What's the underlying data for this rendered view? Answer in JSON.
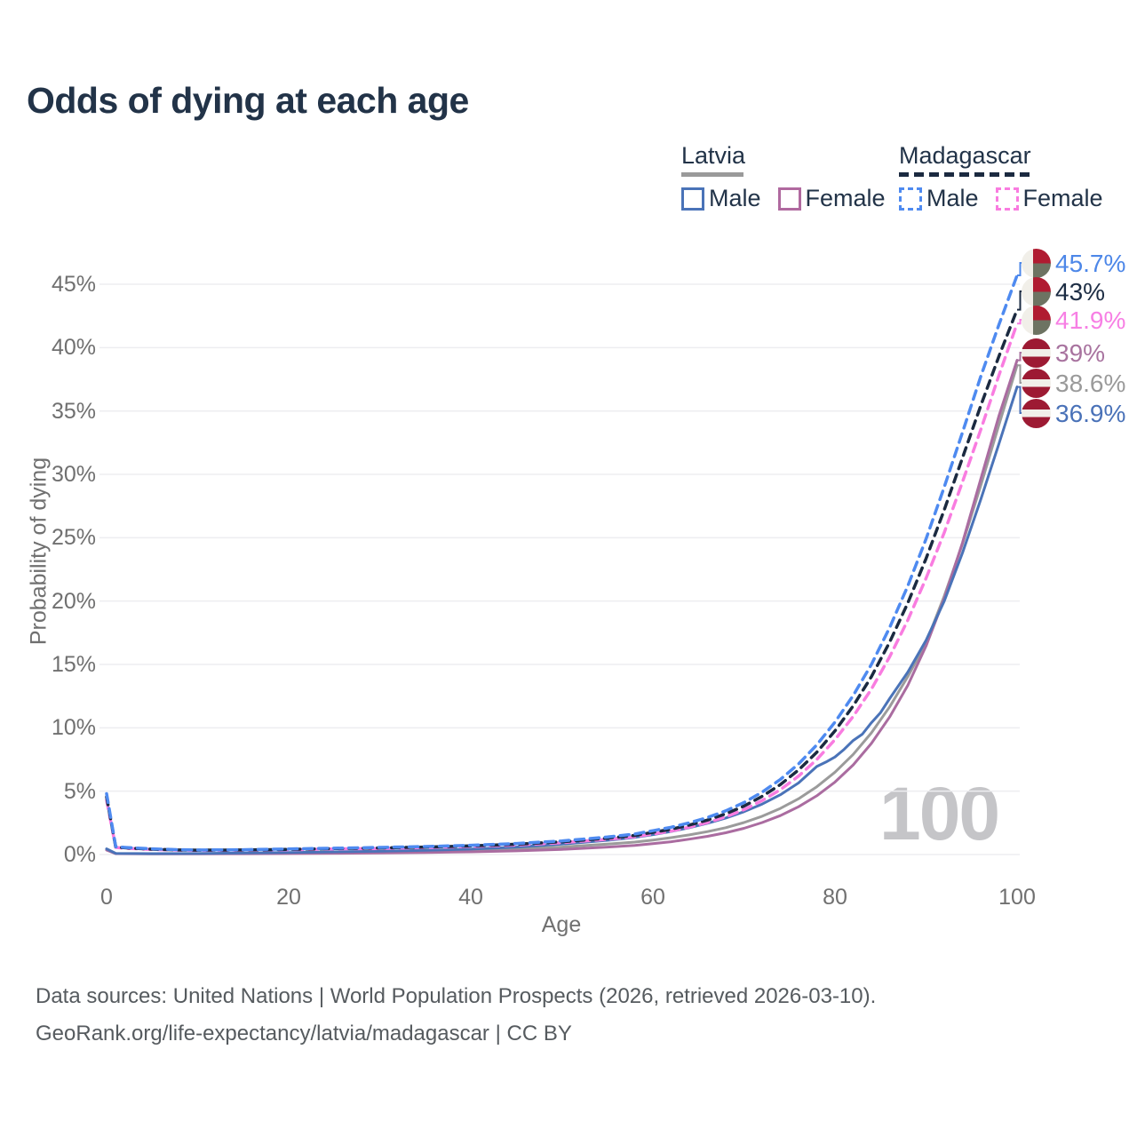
{
  "header": {
    "title": "Odds of dying at each age"
  },
  "legend": {
    "latvia": {
      "name": "Latvia",
      "male_label": "Male",
      "female_label": "Female"
    },
    "madagascar": {
      "name": "Madagascar",
      "male_label": "Male",
      "female_label": "Female"
    }
  },
  "axes": {
    "x_label": "Age",
    "y_label": "Probability of dying",
    "x_ticks": [
      {
        "label": "0",
        "value": 0
      },
      {
        "label": "20",
        "value": 20
      },
      {
        "label": "40",
        "value": 40
      },
      {
        "label": "60",
        "value": 60
      },
      {
        "label": "80",
        "value": 80
      },
      {
        "label": "100",
        "value": 100
      }
    ],
    "y_ticks": [
      {
        "label": "0%",
        "value": 0
      },
      {
        "label": "5%",
        "value": 5
      },
      {
        "label": "10%",
        "value": 10
      },
      {
        "label": "15%",
        "value": 15
      },
      {
        "label": "20%",
        "value": 20
      },
      {
        "label": "25%",
        "value": 25
      },
      {
        "label": "30%",
        "value": 30
      },
      {
        "label": "35%",
        "value": 35
      },
      {
        "label": "40%",
        "value": 40
      },
      {
        "label": "45%",
        "value": 45
      }
    ]
  },
  "watermark": "100",
  "footer": {
    "line1": "Data sources: United Nations | World Population Prospects (2026, retrieved 2026-03-10).",
    "line2": "GeoRank.org/life-expectancy/latvia/madagascar | CC BY"
  },
  "colors": {
    "title_text": "#223348",
    "latvia_male": "#4a73b8",
    "latvia_female": "#aa6ca0",
    "latvia_average": "#9b9b9b",
    "madagascar_male": "#4e8af0",
    "madagascar_female": "#f97ce0",
    "madagascar_average": "#1b2a40",
    "grid": "#ededf0",
    "tick_text": "#707070"
  },
  "chart_data": {
    "type": "line",
    "title": "Odds of dying at each age",
    "xlabel": "Age",
    "ylabel": "Probability of dying",
    "xlim": [
      0,
      100
    ],
    "ylim": [
      0,
      47
    ],
    "grid": "horizontal",
    "legend_position": "top-right",
    "series": [
      {
        "id": "latvia-avg",
        "country": "Latvia",
        "group": "average",
        "color": "#9b9b9b",
        "dash": null,
        "width": 3,
        "points": [
          [
            0,
            0.4
          ],
          [
            1,
            0.08
          ],
          [
            5,
            0.06
          ],
          [
            10,
            0.07
          ],
          [
            15,
            0.09
          ],
          [
            20,
            0.12
          ],
          [
            25,
            0.15
          ],
          [
            30,
            0.19
          ],
          [
            35,
            0.24
          ],
          [
            40,
            0.31
          ],
          [
            45,
            0.43
          ],
          [
            50,
            0.59
          ],
          [
            55,
            0.82
          ],
          [
            58,
            0.98
          ],
          [
            60,
            1.14
          ],
          [
            62,
            1.33
          ],
          [
            64,
            1.55
          ],
          [
            66,
            1.81
          ],
          [
            68,
            2.12
          ],
          [
            70,
            2.52
          ],
          [
            72,
            3.02
          ],
          [
            74,
            3.64
          ],
          [
            76,
            4.4
          ],
          [
            78,
            5.35
          ],
          [
            80,
            6.5
          ],
          [
            82,
            7.9
          ],
          [
            84,
            9.6
          ],
          [
            86,
            11.65
          ],
          [
            88,
            14.05
          ],
          [
            90,
            16.7
          ],
          [
            92,
            20.4
          ],
          [
            94,
            24.5
          ],
          [
            96,
            29.1
          ],
          [
            98,
            33.9
          ],
          [
            100,
            38.6
          ]
        ]
      },
      {
        "id": "latvia-female",
        "country": "Latvia",
        "group": "female",
        "color": "#aa6ca0",
        "dash": null,
        "width": 3,
        "points": [
          [
            0,
            0.35
          ],
          [
            1,
            0.07
          ],
          [
            5,
            0.05
          ],
          [
            10,
            0.05
          ],
          [
            15,
            0.06
          ],
          [
            20,
            0.08
          ],
          [
            25,
            0.1
          ],
          [
            30,
            0.12
          ],
          [
            35,
            0.16
          ],
          [
            40,
            0.21
          ],
          [
            45,
            0.29
          ],
          [
            50,
            0.41
          ],
          [
            55,
            0.59
          ],
          [
            58,
            0.72
          ],
          [
            60,
            0.86
          ],
          [
            62,
            1.01
          ],
          [
            64,
            1.21
          ],
          [
            66,
            1.44
          ],
          [
            68,
            1.72
          ],
          [
            70,
            2.07
          ],
          [
            72,
            2.52
          ],
          [
            74,
            3.07
          ],
          [
            76,
            3.77
          ],
          [
            78,
            4.63
          ],
          [
            80,
            5.72
          ],
          [
            82,
            7.07
          ],
          [
            84,
            8.77
          ],
          [
            86,
            10.85
          ],
          [
            88,
            13.35
          ],
          [
            90,
            16.45
          ],
          [
            92,
            20.2
          ],
          [
            94,
            24.6
          ],
          [
            96,
            29.6
          ],
          [
            98,
            34.6
          ],
          [
            100,
            39.0
          ]
        ]
      },
      {
        "id": "latvia-male",
        "country": "Latvia",
        "group": "male",
        "color": "#4a73b8",
        "dash": null,
        "width": 3,
        "points": [
          [
            0,
            0.45
          ],
          [
            1,
            0.09
          ],
          [
            5,
            0.07
          ],
          [
            10,
            0.08
          ],
          [
            15,
            0.12
          ],
          [
            20,
            0.16
          ],
          [
            25,
            0.21
          ],
          [
            30,
            0.26
          ],
          [
            35,
            0.33
          ],
          [
            40,
            0.43
          ],
          [
            45,
            0.59
          ],
          [
            50,
            0.82
          ],
          [
            55,
            1.12
          ],
          [
            58,
            1.35
          ],
          [
            60,
            1.56
          ],
          [
            62,
            1.82
          ],
          [
            64,
            2.12
          ],
          [
            66,
            2.47
          ],
          [
            68,
            2.88
          ],
          [
            70,
            3.38
          ],
          [
            72,
            3.98
          ],
          [
            74,
            4.72
          ],
          [
            76,
            5.65
          ],
          [
            78,
            6.95
          ],
          [
            79,
            7.3
          ],
          [
            80,
            7.7
          ],
          [
            81,
            8.3
          ],
          [
            82,
            9.0
          ],
          [
            83,
            9.5
          ],
          [
            84,
            10.4
          ],
          [
            85,
            11.2
          ],
          [
            86,
            12.3
          ],
          [
            88,
            14.4
          ],
          [
            90,
            16.9
          ],
          [
            92,
            20.0
          ],
          [
            94,
            23.8
          ],
          [
            96,
            28.0
          ],
          [
            98,
            32.4
          ],
          [
            100,
            36.9
          ]
        ]
      },
      {
        "id": "madagascar-female",
        "country": "Madagascar",
        "group": "female",
        "color": "#f97ce0",
        "dash": "10 7",
        "width": 3.5,
        "points": [
          [
            0,
            4.3
          ],
          [
            1,
            0.56
          ],
          [
            2,
            0.5
          ],
          [
            3,
            0.46
          ],
          [
            5,
            0.4
          ],
          [
            8,
            0.34
          ],
          [
            10,
            0.32
          ],
          [
            15,
            0.34
          ],
          [
            20,
            0.38
          ],
          [
            25,
            0.44
          ],
          [
            30,
            0.48
          ],
          [
            35,
            0.55
          ],
          [
            40,
            0.63
          ],
          [
            45,
            0.75
          ],
          [
            50,
            0.93
          ],
          [
            55,
            1.2
          ],
          [
            58,
            1.4
          ],
          [
            60,
            1.62
          ],
          [
            62,
            1.85
          ],
          [
            64,
            2.16
          ],
          [
            66,
            2.52
          ],
          [
            68,
            2.97
          ],
          [
            70,
            3.54
          ],
          [
            72,
            4.26
          ],
          [
            74,
            5.12
          ],
          [
            76,
            6.19
          ],
          [
            78,
            7.49
          ],
          [
            80,
            9.07
          ],
          [
            82,
            10.9
          ],
          [
            84,
            13.05
          ],
          [
            86,
            15.6
          ],
          [
            88,
            18.5
          ],
          [
            90,
            21.8
          ],
          [
            92,
            25.4
          ],
          [
            94,
            29.4
          ],
          [
            96,
            33.5
          ],
          [
            98,
            37.8
          ],
          [
            100,
            41.9
          ]
        ]
      },
      {
        "id": "madagascar-avg",
        "country": "Madagascar",
        "group": "average",
        "color": "#1b2a40",
        "dash": "9 7",
        "width": 3.5,
        "points": [
          [
            0,
            4.55
          ],
          [
            1,
            0.59
          ],
          [
            2,
            0.53
          ],
          [
            3,
            0.49
          ],
          [
            5,
            0.42
          ],
          [
            8,
            0.36
          ],
          [
            10,
            0.34
          ],
          [
            15,
            0.36
          ],
          [
            20,
            0.41
          ],
          [
            25,
            0.47
          ],
          [
            30,
            0.52
          ],
          [
            35,
            0.59
          ],
          [
            40,
            0.68
          ],
          [
            45,
            0.81
          ],
          [
            50,
            1.0
          ],
          [
            55,
            1.29
          ],
          [
            58,
            1.51
          ],
          [
            60,
            1.75
          ],
          [
            62,
            2.0
          ],
          [
            64,
            2.33
          ],
          [
            66,
            2.72
          ],
          [
            68,
            3.21
          ],
          [
            70,
            3.82
          ],
          [
            72,
            4.59
          ],
          [
            74,
            5.52
          ],
          [
            76,
            6.67
          ],
          [
            78,
            8.07
          ],
          [
            80,
            9.76
          ],
          [
            82,
            11.73
          ],
          [
            84,
            14.03
          ],
          [
            86,
            16.75
          ],
          [
            88,
            19.85
          ],
          [
            90,
            23.35
          ],
          [
            92,
            27.2
          ],
          [
            94,
            31.3
          ],
          [
            96,
            35.4
          ],
          [
            98,
            39.3
          ],
          [
            100,
            43.0
          ]
        ]
      },
      {
        "id": "madagascar-male",
        "country": "Madagascar",
        "group": "male",
        "color": "#4e8af0",
        "dash": "10 7",
        "width": 3.5,
        "points": [
          [
            0,
            4.8
          ],
          [
            1,
            0.62
          ],
          [
            2,
            0.56
          ],
          [
            3,
            0.52
          ],
          [
            5,
            0.45
          ],
          [
            8,
            0.38
          ],
          [
            10,
            0.36
          ],
          [
            15,
            0.38
          ],
          [
            20,
            0.44
          ],
          [
            25,
            0.5
          ],
          [
            30,
            0.56
          ],
          [
            35,
            0.63
          ],
          [
            40,
            0.73
          ],
          [
            45,
            0.87
          ],
          [
            50,
            1.07
          ],
          [
            55,
            1.38
          ],
          [
            58,
            1.62
          ],
          [
            60,
            1.88
          ],
          [
            62,
            2.15
          ],
          [
            64,
            2.5
          ],
          [
            66,
            2.92
          ],
          [
            68,
            3.45
          ],
          [
            70,
            4.1
          ],
          [
            72,
            4.92
          ],
          [
            74,
            5.92
          ],
          [
            76,
            7.15
          ],
          [
            78,
            8.65
          ],
          [
            80,
            10.45
          ],
          [
            82,
            12.55
          ],
          [
            84,
            15.0
          ],
          [
            86,
            17.9
          ],
          [
            88,
            21.2
          ],
          [
            90,
            24.9
          ],
          [
            92,
            29.0
          ],
          [
            94,
            33.3
          ],
          [
            96,
            37.7
          ],
          [
            98,
            41.8
          ],
          [
            100,
            45.7
          ]
        ]
      }
    ],
    "end_labels": [
      {
        "text": "45.7%",
        "value": 45.7,
        "color": "#4d87e8",
        "flag": "madagascar",
        "series": "madagascar-male"
      },
      {
        "text": "43%",
        "value": 43.0,
        "color": "#1d2d44",
        "flag": "madagascar",
        "series": "madagascar-avg"
      },
      {
        "text": "41.9%",
        "value": 41.9,
        "color": "#f77fe4",
        "flag": "madagascar",
        "series": "madagascar-female"
      },
      {
        "text": "39%",
        "value": 39.0,
        "color": "#a8739f",
        "flag": "latvia",
        "series": "latvia-female"
      },
      {
        "text": "38.6%",
        "value": 38.6,
        "color": "#9a9a9a",
        "flag": "latvia",
        "series": "latvia-avg"
      },
      {
        "text": "36.9%",
        "value": 36.9,
        "color": "#4a72b8",
        "flag": "latvia",
        "series": "latvia-male"
      }
    ]
  }
}
